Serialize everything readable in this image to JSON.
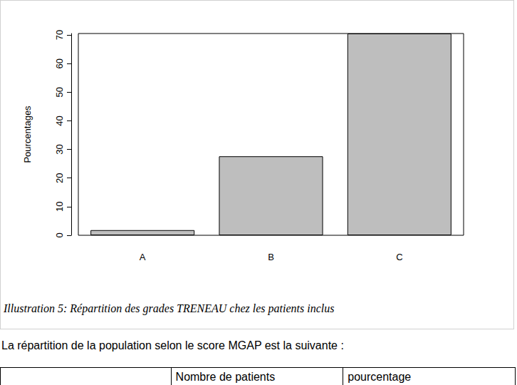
{
  "chart_data": {
    "type": "bar",
    "categories": [
      "A",
      "B",
      "C"
    ],
    "values": [
      1.8,
      27.6,
      70.5
    ],
    "color": "#bebebe",
    "y_label": "Pourcentages",
    "ylim": [
      0,
      70.5
    ],
    "yticks": [
      0,
      10,
      20,
      30,
      40,
      50,
      60,
      70
    ],
    "grid": false
  },
  "caption": "Illustration 5: Répartition des grades TRENEAU chez les patients inclus",
  "paragraph": "La répartition de la population selon le score MGAP est la suivante :",
  "table": {
    "header": [
      "Nombre de patients",
      "pourcentage"
    ]
  }
}
